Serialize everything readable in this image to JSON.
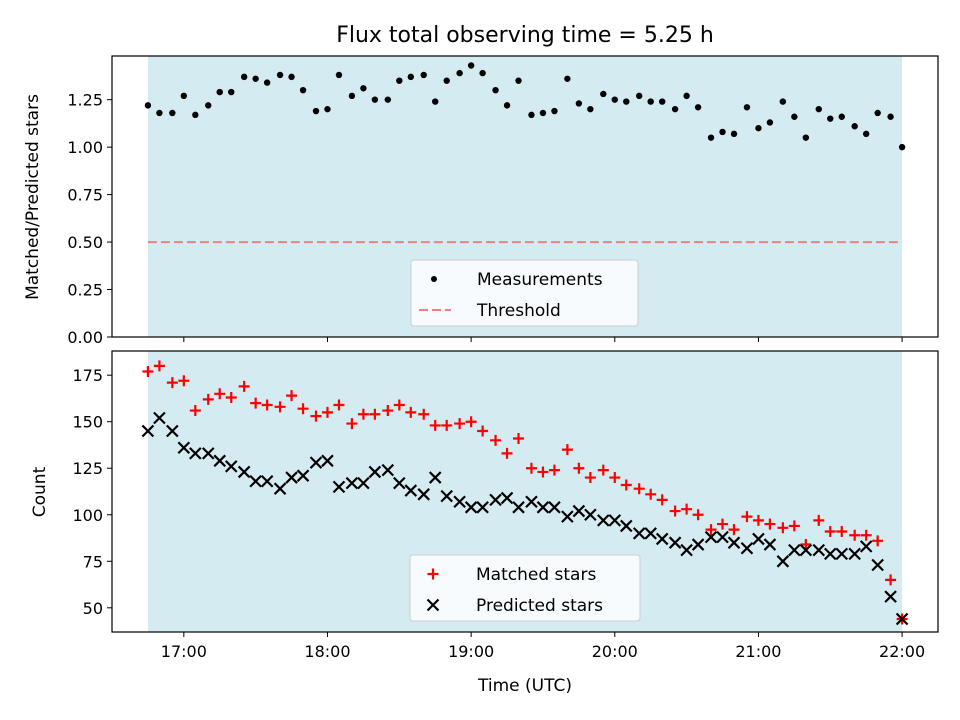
{
  "chart_data": [
    {
      "type": "scatter",
      "title": "Flux total observing time = 5.25 h",
      "ylabel": "Matched/Predicted stars",
      "xlabel": "",
      "ylim": [
        0,
        1.48
      ],
      "yticks": [
        "0.00",
        "0.25",
        "0.50",
        "0.75",
        "1.00",
        "1.25"
      ],
      "shaded_span": [
        16.75,
        22.0
      ],
      "shade_color": "#add8e6",
      "series": [
        {
          "name": "Measurements",
          "color": "#000000",
          "marker": "dot",
          "x": [
            16.75,
            16.83,
            16.92,
            17.0,
            17.08,
            17.17,
            17.25,
            17.33,
            17.42,
            17.5,
            17.58,
            17.67,
            17.75,
            17.83,
            17.92,
            18.0,
            18.08,
            18.17,
            18.25,
            18.33,
            18.42,
            18.5,
            18.58,
            18.67,
            18.75,
            18.83,
            18.92,
            19.0,
            19.08,
            19.17,
            19.25,
            19.33,
            19.42,
            19.5,
            19.58,
            19.67,
            19.75,
            19.83,
            19.92,
            20.0,
            20.08,
            20.17,
            20.25,
            20.33,
            20.42,
            20.5,
            20.58,
            20.67,
            20.75,
            20.83,
            20.92,
            21.0,
            21.08,
            21.17,
            21.25,
            21.33,
            21.42,
            21.5,
            21.58,
            21.67,
            21.75,
            21.83,
            21.92,
            22.0
          ],
          "y": [
            1.22,
            1.18,
            1.18,
            1.27,
            1.17,
            1.22,
            1.29,
            1.29,
            1.37,
            1.36,
            1.34,
            1.38,
            1.37,
            1.3,
            1.19,
            1.2,
            1.38,
            1.27,
            1.31,
            1.25,
            1.25,
            1.35,
            1.37,
            1.38,
            1.24,
            1.35,
            1.39,
            1.43,
            1.39,
            1.3,
            1.22,
            1.35,
            1.17,
            1.18,
            1.19,
            1.36,
            1.23,
            1.2,
            1.28,
            1.25,
            1.24,
            1.27,
            1.24,
            1.24,
            1.2,
            1.27,
            1.21,
            1.05,
            1.08,
            1.07,
            1.21,
            1.1,
            1.13,
            1.24,
            1.16,
            1.05,
            1.2,
            1.15,
            1.16,
            1.11,
            1.07,
            1.18,
            1.16,
            1.0
          ]
        },
        {
          "name": "Threshold",
          "color": "#f08080",
          "style": "dashed",
          "x": [
            16.75,
            22.0
          ],
          "y": [
            0.5,
            0.5
          ]
        }
      ],
      "legend": "bottom-center"
    },
    {
      "type": "scatter",
      "title": "",
      "xlabel": "Time (UTC)",
      "ylabel": "Count",
      "xlim": [
        16.5,
        22.25
      ],
      "ylim": [
        37,
        188
      ],
      "xticks": [
        17,
        18,
        19,
        20,
        21,
        22
      ],
      "xtick_labels": [
        "17:00",
        "18:00",
        "19:00",
        "20:00",
        "21:00",
        "22:00"
      ],
      "yticks": [
        "50",
        "75",
        "100",
        "125",
        "150",
        "175"
      ],
      "shaded_span": [
        16.75,
        22.0
      ],
      "shade_color": "#add8e6",
      "series": [
        {
          "name": "Matched stars",
          "color": "#ff0000",
          "marker": "plus",
          "x": [
            16.75,
            16.83,
            16.92,
            17.0,
            17.08,
            17.17,
            17.25,
            17.33,
            17.42,
            17.5,
            17.58,
            17.67,
            17.75,
            17.83,
            17.92,
            18.0,
            18.08,
            18.17,
            18.25,
            18.33,
            18.42,
            18.5,
            18.58,
            18.67,
            18.75,
            18.83,
            18.92,
            19.0,
            19.08,
            19.17,
            19.25,
            19.33,
            19.42,
            19.5,
            19.58,
            19.67,
            19.75,
            19.83,
            19.92,
            20.0,
            20.08,
            20.17,
            20.25,
            20.33,
            20.42,
            20.5,
            20.58,
            20.67,
            20.75,
            20.83,
            20.92,
            21.0,
            21.08,
            21.17,
            21.25,
            21.33,
            21.42,
            21.5,
            21.58,
            21.67,
            21.75,
            21.83,
            21.92,
            22.0
          ],
          "y": [
            177,
            180,
            171,
            172,
            156,
            162,
            165,
            163,
            169,
            160,
            159,
            158,
            164,
            157,
            153,
            155,
            159,
            149,
            154,
            154,
            156,
            159,
            155,
            154,
            148,
            148,
            149,
            150,
            145,
            140,
            133,
            141,
            125,
            123,
            124,
            135,
            125,
            120,
            124,
            120,
            116,
            114,
            111,
            108,
            102,
            103,
            100,
            92,
            95,
            92,
            99,
            97,
            95,
            93,
            94,
            84,
            97,
            91,
            91,
            89,
            89,
            86,
            65,
            44
          ]
        },
        {
          "name": "Predicted stars",
          "color": "#000000",
          "marker": "x",
          "x": [
            16.75,
            16.83,
            16.92,
            17.0,
            17.08,
            17.17,
            17.25,
            17.33,
            17.42,
            17.5,
            17.58,
            17.67,
            17.75,
            17.83,
            17.92,
            18.0,
            18.08,
            18.17,
            18.25,
            18.33,
            18.42,
            18.5,
            18.58,
            18.67,
            18.75,
            18.83,
            18.92,
            19.0,
            19.08,
            19.17,
            19.25,
            19.33,
            19.42,
            19.5,
            19.58,
            19.67,
            19.75,
            19.83,
            19.92,
            20.0,
            20.08,
            20.17,
            20.25,
            20.33,
            20.42,
            20.5,
            20.58,
            20.67,
            20.75,
            20.83,
            20.92,
            21.0,
            21.08,
            21.17,
            21.25,
            21.33,
            21.42,
            21.5,
            21.58,
            21.67,
            21.75,
            21.83,
            21.92,
            22.0
          ],
          "y": [
            145,
            152,
            145,
            136,
            133,
            133,
            129,
            126,
            123,
            118,
            118,
            114,
            120,
            121,
            128,
            129,
            115,
            117,
            117,
            123,
            124,
            117,
            113,
            111,
            120,
            110,
            107,
            104,
            104,
            108,
            109,
            104,
            107,
            104,
            104,
            99,
            102,
            100,
            97,
            97,
            94,
            90,
            90,
            87,
            85,
            81,
            84,
            88,
            88,
            85,
            82,
            87,
            84,
            75,
            81,
            81,
            81,
            79,
            79,
            79,
            83,
            73,
            56,
            44
          ]
        }
      ],
      "legend": "bottom-center"
    }
  ]
}
